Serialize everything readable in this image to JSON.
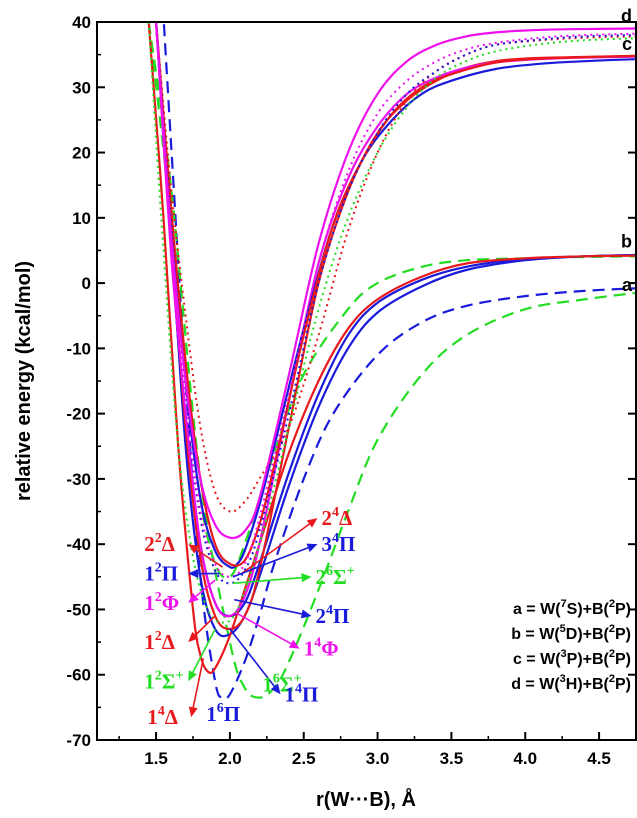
{
  "chart_data": {
    "type": "line",
    "xlabel": "r(W···B), Å",
    "ylabel": "relative energy (kcal/mol)",
    "xlim": [
      1.1,
      4.75
    ],
    "ylim": [
      -70,
      40
    ],
    "xticks": [
      1.5,
      2.0,
      2.5,
      3.0,
      3.5,
      4.0,
      4.5
    ],
    "xtick_labels": [
      "1.5",
      "2.0",
      "2.5",
      "3.0",
      "3.5",
      "4.0",
      "4.5"
    ],
    "yticks": [
      -70,
      -60,
      -50,
      -40,
      -30,
      -20,
      -10,
      0,
      10,
      20,
      30,
      40
    ],
    "ytick_labels": [
      "-70",
      "-60",
      "-50",
      "-40",
      "-30",
      "-20",
      "-10",
      "0",
      "10",
      "20",
      "30",
      "40"
    ],
    "colors": {
      "red": "#e8191c",
      "blue": "#1a1adb",
      "green": "#22dd22",
      "magenta": "#ee11ee"
    },
    "asymptotes": [
      {
        "letter": "a",
        "y": -1.5
      },
      {
        "letter": "b",
        "y": 4.2
      },
      {
        "letter": "c",
        "y": 34.5
      },
      {
        "letter": "d",
        "y": 38.8
      }
    ],
    "legend_text": [
      {
        "pre": "a = W(",
        "sup": "7",
        "mid": "S)+B(",
        "sup2": "2",
        "post": "P)"
      },
      {
        "pre": "b = W(",
        "sup": "5",
        "mid": "D)+B(",
        "sup2": "2",
        "post": "P)"
      },
      {
        "pre": "c = W(",
        "sup": "3",
        "mid": "P)+B(",
        "sup2": "2",
        "post": "P)"
      },
      {
        "pre": "d = W(",
        "sup": "3",
        "mid": "H)+B(",
        "sup2": "2",
        "post": "P)"
      }
    ],
    "series": [
      {
        "name": "1⁶Π",
        "color": "blue",
        "dash": "dashed",
        "asymptote": "a",
        "x": [
          1.5,
          1.6,
          1.7,
          1.8,
          1.9,
          1.95,
          2.0,
          2.1,
          2.2,
          2.3,
          2.5,
          2.7,
          3.0,
          3.3,
          3.6,
          4.0,
          4.4,
          4.75
        ],
        "y": [
          60,
          22,
          -15,
          -45,
          -61,
          -63.5,
          -63,
          -58,
          -51,
          -43,
          -30,
          -20,
          -11,
          -6,
          -3.5,
          -2,
          -1.2,
          -0.8
        ]
      },
      {
        "name": "1⁶Σ⁺",
        "color": "green",
        "dash": "dashed",
        "asymptote": "a",
        "x": [
          1.45,
          1.6,
          1.8,
          2.0,
          2.1,
          2.2,
          2.3,
          2.4,
          2.6,
          2.8,
          3.0,
          3.3,
          3.6,
          4.0,
          4.4,
          4.75
        ],
        "y": [
          40,
          15,
          -30,
          -55,
          -62,
          -63.5,
          -62,
          -58,
          -47,
          -35,
          -24,
          -14,
          -8,
          -4,
          -2.5,
          -1.5
        ]
      },
      {
        "name": "2⁶Σ⁺",
        "color": "green",
        "dash": "dashed",
        "asymptote": "b",
        "x": [
          1.45,
          1.6,
          1.7,
          1.8,
          1.9,
          2.0,
          2.1,
          2.3,
          2.5,
          2.8,
          3.0,
          3.3,
          3.6,
          4.0,
          4.4,
          4.75
        ],
        "y": [
          40,
          10,
          -15,
          -33,
          -43,
          -45,
          -40,
          -26,
          -14,
          -4,
          0,
          2.5,
          3.5,
          3.8,
          4,
          4.1
        ]
      },
      {
        "name": "1⁴Π",
        "color": "blue",
        "dash": "solid",
        "asymptote": "b",
        "x": [
          1.5,
          1.6,
          1.7,
          1.8,
          1.9,
          2.0,
          2.1,
          2.2,
          2.4,
          2.6,
          2.8,
          3.0,
          3.3,
          3.6,
          4.0,
          4.4,
          4.75
        ],
        "y": [
          40,
          8,
          -25,
          -45,
          -53,
          -53.8,
          -51,
          -45,
          -31,
          -19,
          -10,
          -4.5,
          -0.5,
          2,
          3.5,
          4.1,
          4.3
        ]
      },
      {
        "name": "2⁴Π",
        "color": "blue",
        "dash": "solid",
        "asymptote": "b",
        "x": [
          1.5,
          1.6,
          1.7,
          1.8,
          1.9,
          2.0,
          2.1,
          2.2,
          2.4,
          2.6,
          2.8,
          3.0,
          3.3,
          3.6,
          4.0,
          4.4,
          4.75
        ],
        "y": [
          40,
          6,
          -22,
          -40,
          -49,
          -51,
          -49,
          -43,
          -29,
          -17,
          -8,
          -3,
          0.5,
          2.5,
          3.7,
          4.1,
          4.3
        ]
      },
      {
        "name": "1⁴Δ",
        "color": "red",
        "dash": "solid",
        "asymptote": "b",
        "x": [
          1.45,
          1.55,
          1.65,
          1.75,
          1.8,
          1.85,
          1.9,
          2.0,
          2.1,
          2.2,
          2.4,
          2.6,
          2.8,
          3.0,
          3.3,
          3.6,
          4.0,
          4.4,
          4.75
        ],
        "y": [
          40,
          10,
          -25,
          -50,
          -57,
          -59.5,
          -59,
          -54,
          -47,
          -40,
          -26,
          -15,
          -7,
          -2.5,
          1,
          3,
          3.8,
          4.1,
          4.2
        ]
      },
      {
        "name": "1²Δ",
        "color": "red",
        "dash": "solid",
        "asymptote": "c",
        "x": [
          1.5,
          1.6,
          1.7,
          1.8,
          1.9,
          2.0,
          2.1,
          2.2,
          2.4,
          2.6,
          2.8,
          3.0,
          3.2,
          3.4,
          3.6,
          3.8,
          4.0,
          4.3,
          4.75
        ],
        "y": [
          40,
          8,
          -22,
          -42,
          -51,
          -53,
          -51,
          -44,
          -22,
          0,
          14,
          23,
          28,
          31,
          33,
          34,
          34.4,
          34.6,
          34.8
        ]
      },
      {
        "name": "1⁴Φ",
        "color": "magenta",
        "dash": "solid",
        "asymptote": "c",
        "x": [
          1.5,
          1.6,
          1.7,
          1.8,
          1.9,
          2.0,
          2.1,
          2.2,
          2.4,
          2.6,
          2.8,
          3.0,
          3.2,
          3.4,
          3.6,
          3.8,
          4.0,
          4.3,
          4.75
        ],
        "y": [
          40,
          5,
          -20,
          -40,
          -49,
          -51,
          -48,
          -40,
          -18,
          3,
          16,
          24,
          29,
          31.5,
          33,
          33.8,
          34.2,
          34.5,
          34.7
        ]
      },
      {
        "name": "1²Π",
        "color": "blue",
        "dash": "solid",
        "asymptote": "c",
        "x": [
          1.5,
          1.6,
          1.7,
          1.8,
          1.9,
          2.0,
          2.05,
          2.1,
          2.2,
          2.3,
          2.5,
          2.7,
          2.9,
          3.1,
          3.3,
          3.5,
          3.8,
          4.1,
          4.4,
          4.75
        ],
        "y": [
          40,
          10,
          -15,
          -33,
          -41,
          -43.5,
          -43,
          -41,
          -34,
          -25,
          -7,
          9,
          19,
          25,
          29,
          31,
          32.8,
          33.6,
          34,
          34.3
        ]
      },
      {
        "name": "2²Δ",
        "color": "red",
        "dash": "solid",
        "asymptote": "c",
        "x": [
          1.5,
          1.6,
          1.7,
          1.8,
          1.9,
          2.0,
          2.1,
          2.2,
          2.3,
          2.5,
          2.7,
          2.9,
          3.1,
          3.3,
          3.5,
          3.8,
          4.1,
          4.4,
          4.75
        ],
        "y": [
          40,
          12,
          -12,
          -30,
          -40,
          -43,
          -42.5,
          -37,
          -28,
          -8,
          9,
          19,
          26,
          30,
          32,
          33.8,
          34.4,
          34.6,
          34.8
        ]
      },
      {
        "name": "2⁴Δ",
        "color": "red",
        "dash": "dotted",
        "asymptote": "d",
        "x": [
          1.5,
          1.6,
          1.7,
          1.8,
          1.9,
          2.0,
          2.1,
          2.2,
          2.4,
          2.6,
          2.8,
          3.0,
          3.2,
          3.4,
          3.6,
          3.8,
          4.1,
          4.4,
          4.75
        ],
        "y": [
          40,
          15,
          -5,
          -22,
          -32,
          -35,
          -33.5,
          -30,
          -22,
          -8,
          8,
          20,
          28,
          32.5,
          35,
          36.5,
          37.2,
          37.6,
          37.8
        ]
      },
      {
        "name": "3⁴Π",
        "color": "blue",
        "dash": "dotted",
        "asymptote": "d",
        "x": [
          1.5,
          1.6,
          1.7,
          1.8,
          1.9,
          2.0,
          2.1,
          2.2,
          2.4,
          2.6,
          2.8,
          3.0,
          3.2,
          3.4,
          3.6,
          3.8,
          4.1,
          4.4,
          4.75
        ],
        "y": [
          40,
          10,
          -18,
          -36,
          -44,
          -46,
          -44,
          -38,
          -20,
          0,
          14,
          23,
          29,
          32.5,
          35,
          36.5,
          37.3,
          37.8,
          38
        ]
      },
      {
        "name": "1²Φ",
        "color": "magenta",
        "dash": "dotted",
        "asymptote": "d",
        "x": [
          1.5,
          1.6,
          1.7,
          1.8,
          1.9,
          2.0,
          2.1,
          2.2,
          2.4,
          2.6,
          2.8,
          3.0,
          3.2,
          3.4,
          3.6,
          3.8,
          4.1,
          4.4,
          4.75
        ],
        "y": [
          40,
          8,
          -18,
          -35,
          -43,
          -45,
          -43,
          -36,
          -17,
          3,
          17,
          26,
          31,
          34,
          35.8,
          36.8,
          37.6,
          38,
          38.2
        ]
      },
      {
        "name": "1²Σ⁺",
        "color": "green",
        "dash": "dotted",
        "asymptote": "d",
        "x": [
          1.45,
          1.55,
          1.65,
          1.75,
          1.85,
          1.95,
          2.05,
          2.2,
          2.4,
          2.6,
          2.8,
          3.0,
          3.2,
          3.4,
          3.6,
          3.8,
          4.1,
          4.4,
          4.75
        ],
        "y": [
          40,
          5,
          -25,
          -42,
          -50,
          -52,
          -50,
          -40,
          -22,
          -4,
          10,
          20,
          27,
          31.5,
          34,
          35.5,
          36.6,
          37.2,
          37.5
        ]
      },
      {
        "name": "1⁴Φ (d)",
        "color": "magenta",
        "dash": "solid",
        "asymptote": "d",
        "x": [
          1.5,
          1.6,
          1.7,
          1.8,
          1.9,
          2.0,
          2.1,
          2.2,
          2.4,
          2.6,
          2.8,
          3.0,
          3.2,
          3.4,
          3.6,
          3.8,
          4.0,
          4.3,
          4.75
        ],
        "y": [
          40,
          8,
          -15,
          -30,
          -37,
          -39,
          -38,
          -33,
          -14,
          6,
          20,
          29,
          34,
          36.5,
          37.8,
          38.4,
          38.7,
          38.9,
          39
        ]
      }
    ],
    "labels": [
      {
        "base": "2",
        "sup": "2",
        "sym": "Δ",
        "color": "red",
        "lx": 1.42,
        "ly": -40,
        "ax": 1.95,
        "ay": -43.5
      },
      {
        "base": "1",
        "sup": "2",
        "sym": "Π",
        "color": "blue",
        "lx": 1.42,
        "ly": -44.5,
        "ax": 1.93,
        "ay": -44.5
      },
      {
        "base": "1",
        "sup": "2",
        "sym": "Φ",
        "color": "magenta",
        "lx": 1.42,
        "ly": -49,
        "ax": 1.9,
        "ay": -45.5
      },
      {
        "base": "1",
        "sup": "2",
        "sym": "Δ",
        "color": "red",
        "lx": 1.42,
        "ly": -55,
        "ax": 1.9,
        "ay": -51
      },
      {
        "base": "1",
        "sup": "2",
        "sym": "Σ",
        "sup2": "+",
        "color": "green",
        "lx": 1.42,
        "ly": -61,
        "ax": 1.9,
        "ay": -53
      },
      {
        "base": "1",
        "sup": "4",
        "sym": "Δ",
        "color": "red",
        "lx": 1.44,
        "ly": -66.5,
        "ax": 1.82,
        "ay": -57.5
      },
      {
        "base": "1",
        "sup": "6",
        "sym": "Π",
        "color": "blue",
        "lx": 1.84,
        "ly": -66,
        "ax": null,
        "ay": null
      },
      {
        "base": "1",
        "sup": "6",
        "sym": "Σ",
        "sup2": "+",
        "color": "green",
        "lx": 2.22,
        "ly": -61.5,
        "ax": null,
        "ay": null
      },
      {
        "base": "2",
        "sup": "4",
        "sym": "Δ",
        "color": "red",
        "lx": 2.62,
        "ly": -36,
        "ax": 2.08,
        "ay": -44.5
      },
      {
        "base": "3",
        "sup": "4",
        "sym": "Π",
        "color": "blue",
        "lx": 2.62,
        "ly": -40,
        "ax": 2.02,
        "ay": -45
      },
      {
        "base": "2",
        "sup": "6",
        "sym": "Σ",
        "sup2": "+",
        "color": "green",
        "lx": 2.58,
        "ly": -45,
        "ax": 2.02,
        "ay": -46
      },
      {
        "base": "2",
        "sup": "4",
        "sym": "Π",
        "color": "blue",
        "lx": 2.58,
        "ly": -51,
        "ax": 2.03,
        "ay": -48.5
      },
      {
        "base": "1",
        "sup": "4",
        "sym": "Φ",
        "color": "magenta",
        "lx": 2.5,
        "ly": -56,
        "ax": 2.04,
        "ay": -50.5
      },
      {
        "base": "1",
        "sup": "4",
        "sym": "Π",
        "color": "blue",
        "lx": 2.37,
        "ly": -63,
        "ax": 2.0,
        "ay": -53
      }
    ]
  }
}
